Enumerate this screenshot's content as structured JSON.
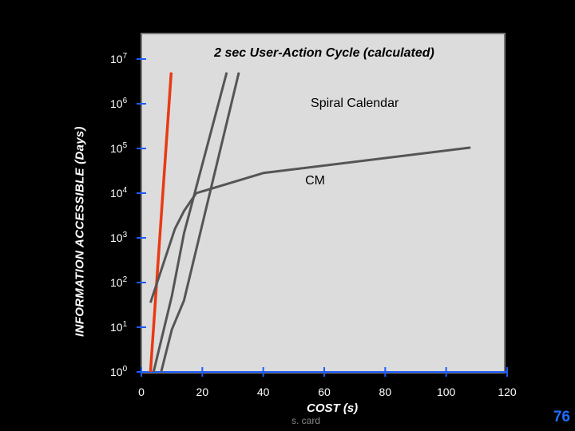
{
  "chart_data": {
    "type": "line",
    "title": "",
    "xlabel": "COST (s)",
    "ylabel": "INFORMATION ACCESSIBLE (Days)",
    "xlim": [
      0,
      120
    ],
    "ylim_log10": [
      0,
      7
    ],
    "yscale": "log",
    "x_ticks": [
      "0",
      "20",
      "40",
      "60",
      "80",
      "100",
      "120"
    ],
    "y_ticks": [
      {
        "base": "10",
        "exp": "0"
      },
      {
        "base": "10",
        "exp": "1"
      },
      {
        "base": "10",
        "exp": "2"
      },
      {
        "base": "10",
        "exp": "3"
      },
      {
        "base": "10",
        "exp": "4"
      },
      {
        "base": "10",
        "exp": "5"
      },
      {
        "base": "10",
        "exp": "6"
      },
      {
        "base": "10",
        "exp": "7"
      }
    ],
    "annotations": [
      {
        "text": "2 sec User-Action Cycle (calculated)",
        "x": 60,
        "y_log10": 7.05,
        "style": "italic-bold"
      },
      {
        "text": "Spiral Calendar",
        "x": 70,
        "y_log10": 5.93,
        "style": "normal"
      },
      {
        "text": "CM",
        "x": 57,
        "y_log10": 4.2,
        "style": "normal"
      }
    ],
    "series": [
      {
        "color": "#e83a14",
        "width": 3.5,
        "points": [
          [
            3,
            0.0
          ],
          [
            9.8,
            6.7
          ]
        ]
      },
      {
        "color": "#555555",
        "width": 3,
        "points": [
          [
            4,
            0.0
          ],
          [
            10,
            1.7
          ],
          [
            14,
            3.1
          ],
          [
            28,
            6.7
          ]
        ]
      },
      {
        "color": "#555555",
        "width": 3,
        "points": [
          [
            6.5,
            0.0
          ],
          [
            10,
            0.95
          ],
          [
            14,
            1.6
          ],
          [
            32,
            6.7
          ]
        ]
      },
      {
        "color": "#555555",
        "width": 3,
        "points": [
          [
            3,
            1.55
          ],
          [
            11,
            3.2
          ],
          [
            14,
            3.6
          ],
          [
            18,
            4.0
          ],
          [
            40,
            4.45
          ],
          [
            108,
            5.02
          ]
        ]
      }
    ]
  },
  "footer": {
    "credit": "s. card",
    "page_number": "76"
  }
}
